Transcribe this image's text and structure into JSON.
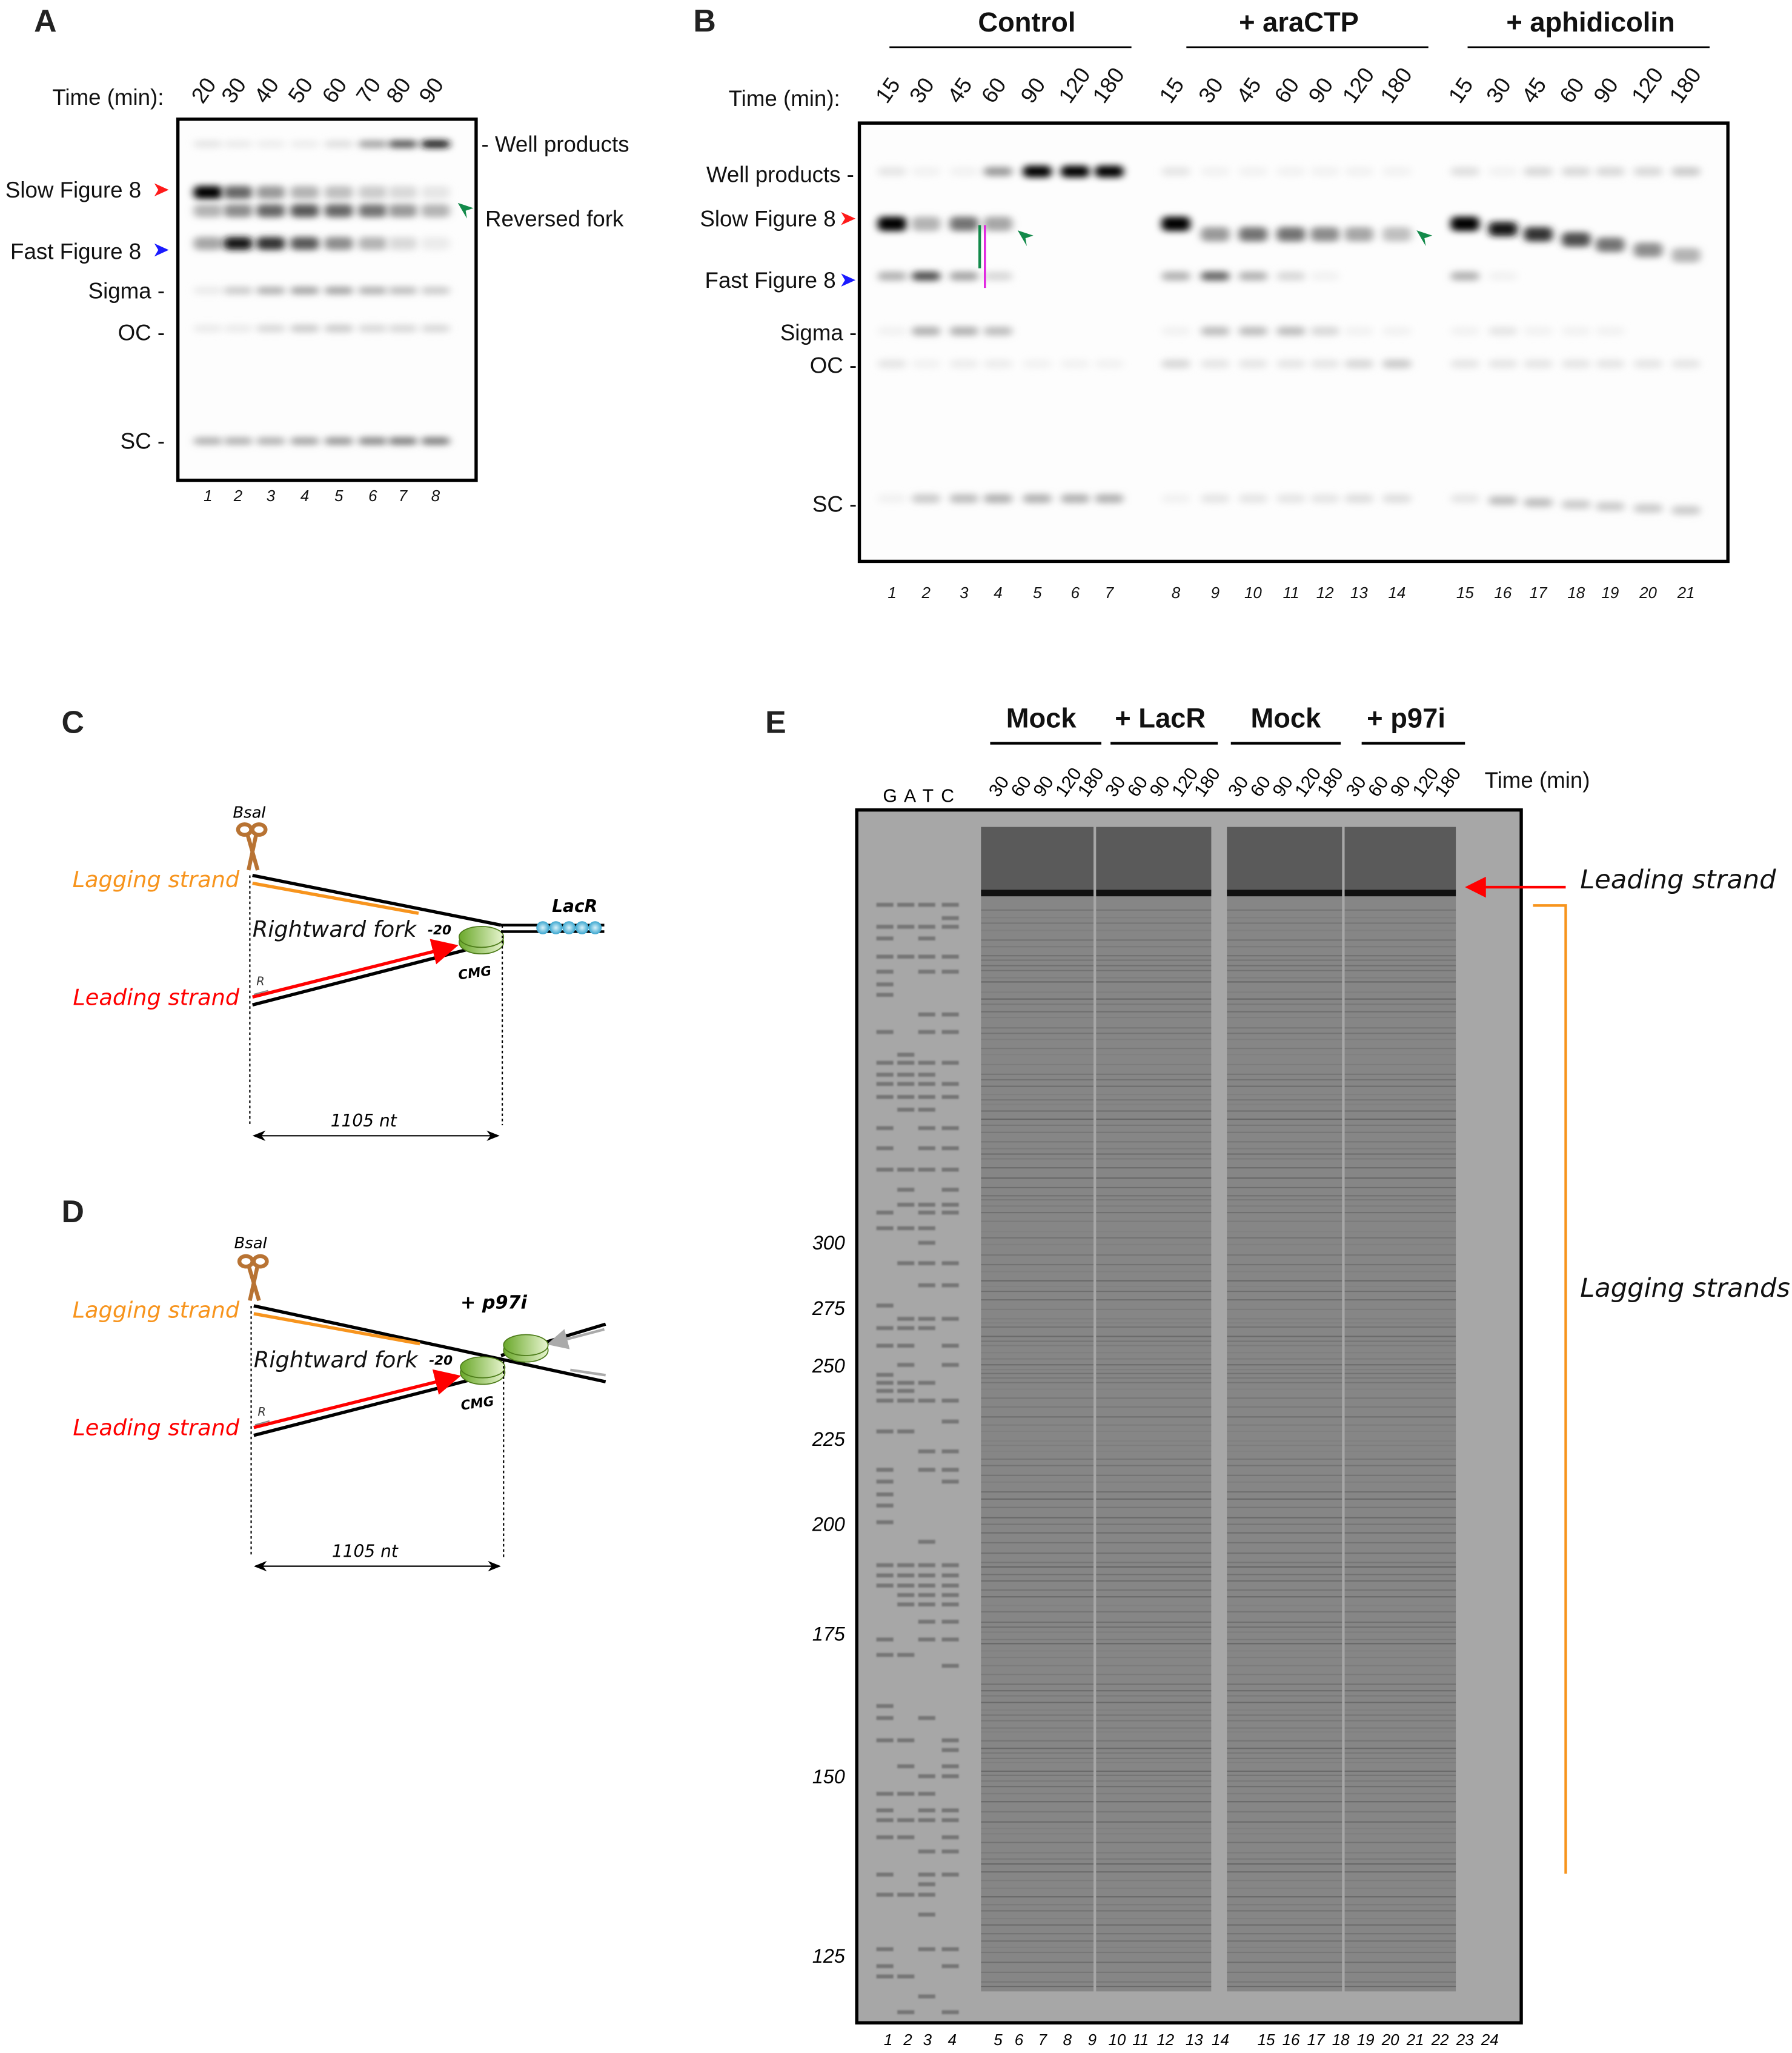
{
  "panelA": {
    "label": "A",
    "time_label": "Time (min):",
    "times": [
      "20",
      "30",
      "40",
      "50",
      "60",
      "70",
      "80",
      "90"
    ],
    "lanes": [
      "1",
      "2",
      "3",
      "4",
      "5",
      "6",
      "7",
      "8"
    ],
    "left_labels": {
      "slow": "Slow Figure 8",
      "fast": "Fast Figure 8",
      "sigma": "Sigma -",
      "oc": "OC -",
      "sc": "SC -"
    },
    "right_labels": {
      "well": "- Well products",
      "reversed": "Reversed fork"
    },
    "marker_colors": {
      "slow": "#ff1a1a",
      "fast": "#1a1aff",
      "reversed": "#138a4a"
    },
    "band_rows": [
      "well",
      "slow",
      "reversed",
      "fast",
      "sigma",
      "oc",
      "sc"
    ],
    "band_intensity": [
      [
        0.1,
        1.0,
        0.3,
        0.35,
        0.08,
        0.08,
        0.3
      ],
      [
        0.08,
        0.6,
        0.45,
        0.9,
        0.2,
        0.08,
        0.3
      ],
      [
        0.07,
        0.4,
        0.6,
        0.8,
        0.3,
        0.15,
        0.3
      ],
      [
        0.07,
        0.3,
        0.65,
        0.65,
        0.35,
        0.2,
        0.35
      ],
      [
        0.12,
        0.25,
        0.6,
        0.45,
        0.35,
        0.2,
        0.4
      ],
      [
        0.35,
        0.2,
        0.55,
        0.3,
        0.3,
        0.15,
        0.45
      ],
      [
        0.65,
        0.15,
        0.4,
        0.15,
        0.25,
        0.15,
        0.5
      ],
      [
        0.9,
        0.1,
        0.3,
        0.08,
        0.2,
        0.15,
        0.5
      ]
    ]
  },
  "panelB": {
    "label": "B",
    "groups": [
      "Control",
      "+ araCTP",
      "+ aphidicolin"
    ],
    "time_label": "Time (min):",
    "times": [
      "15",
      "30",
      "45",
      "60",
      "90",
      "120",
      "180",
      "15",
      "30",
      "45",
      "60",
      "90",
      "120",
      "180",
      "15",
      "30",
      "45",
      "60",
      "90",
      "120",
      "180"
    ],
    "lanes": [
      "1",
      "2",
      "3",
      "4",
      "5",
      "6",
      "7",
      "8",
      "9",
      "10",
      "11",
      "12",
      "13",
      "14",
      "15",
      "16",
      "17",
      "18",
      "19",
      "20",
      "21"
    ],
    "left_labels": {
      "well": "Well products -",
      "slow": "Slow Figure 8",
      "fast": "Fast Figure 8",
      "sigma": "Sigma -",
      "oc": "OC -",
      "sc": "SC -"
    },
    "marker_colors": {
      "slow": "#ff1a1a",
      "fast": "#1a1aff",
      "reversed": "#138a4a",
      "green_line": "#138a4a",
      "magenta_line": "#e020e0"
    },
    "band_rows": [
      "well",
      "slow",
      "fast",
      "sigma",
      "oc",
      "sc"
    ],
    "band_intensity": [
      [
        0.1,
        1.0,
        0.3,
        0.05,
        0.1,
        0.05
      ],
      [
        0.05,
        0.3,
        0.7,
        0.3,
        0.05,
        0.2
      ],
      [
        0.05,
        0.55,
        0.35,
        0.3,
        0.07,
        0.25
      ],
      [
        0.4,
        0.35,
        0.15,
        0.25,
        0.07,
        0.3
      ],
      [
        1.0,
        0.0,
        0.0,
        0.0,
        0.05,
        0.3
      ],
      [
        1.0,
        0.0,
        0.0,
        0.0,
        0.05,
        0.3
      ],
      [
        1.0,
        0.0,
        0.0,
        0.0,
        0.05,
        0.3
      ],
      [
        0.1,
        1.0,
        0.3,
        0.05,
        0.15,
        0.05
      ],
      [
        0.05,
        0.4,
        0.6,
        0.25,
        0.1,
        0.1
      ],
      [
        0.05,
        0.55,
        0.3,
        0.25,
        0.1,
        0.1
      ],
      [
        0.05,
        0.55,
        0.15,
        0.25,
        0.1,
        0.1
      ],
      [
        0.05,
        0.45,
        0.05,
        0.15,
        0.1,
        0.1
      ],
      [
        0.05,
        0.35,
        0.0,
        0.05,
        0.15,
        0.12
      ],
      [
        0.05,
        0.25,
        0.0,
        0.05,
        0.2,
        0.12
      ],
      [
        0.12,
        1.0,
        0.3,
        0.05,
        0.1,
        0.1
      ],
      [
        0.05,
        0.9,
        0.05,
        0.1,
        0.1,
        0.25
      ],
      [
        0.15,
        0.8,
        0.0,
        0.05,
        0.1,
        0.25
      ],
      [
        0.15,
        0.7,
        0.0,
        0.05,
        0.1,
        0.2
      ],
      [
        0.15,
        0.55,
        0.0,
        0.05,
        0.1,
        0.2
      ],
      [
        0.15,
        0.45,
        0.0,
        0.0,
        0.1,
        0.2
      ],
      [
        0.2,
        0.3,
        0.0,
        0.0,
        0.1,
        0.2
      ]
    ]
  },
  "panelC": {
    "label": "C",
    "enzyme": "BsaI",
    "lagging": "Lagging strand",
    "leading": "Leading strand",
    "fork": "Rightward fork",
    "position": "-20",
    "primer": "R",
    "helicase": "CMG",
    "barrier": "LacR",
    "distance": "1105 nt",
    "colors": {
      "lagging": "#f7941d",
      "leading": "#ff0000",
      "scissors": "#b87333",
      "cmg": "#8dc63f",
      "lacr": "#5bc0de"
    }
  },
  "panelD": {
    "label": "D",
    "enzyme": "BsaI",
    "lagging": "Lagging strand",
    "leading": "Leading strand",
    "fork": "Rightward fork",
    "position": "-20",
    "primer": "R",
    "helicase": "CMG",
    "treatment": "+ p97i",
    "distance": "1105 nt"
  },
  "panelE": {
    "label": "E",
    "groups": [
      "Mock",
      "+ LacR",
      "Mock",
      "+ p97i"
    ],
    "times": [
      "30",
      "60",
      "90",
      "120",
      "180"
    ],
    "time_label": "Time (min)",
    "sequencing": "G A T C",
    "markers": [
      "300",
      "275",
      "250",
      "225",
      "200",
      "175",
      "150",
      "125"
    ],
    "lanes": [
      "1",
      "2",
      "3",
      "4",
      "5",
      "6",
      "7",
      "8",
      "9",
      "10",
      "11",
      "12",
      "13",
      "14",
      "15",
      "16",
      "17",
      "18",
      "19",
      "20",
      "21",
      "22",
      "23",
      "24"
    ],
    "leading_label": "Leading strand",
    "lagging_label": "Lagging strands",
    "colors": {
      "arrow": "#ff0000",
      "bracket": "#f7941d"
    }
  }
}
